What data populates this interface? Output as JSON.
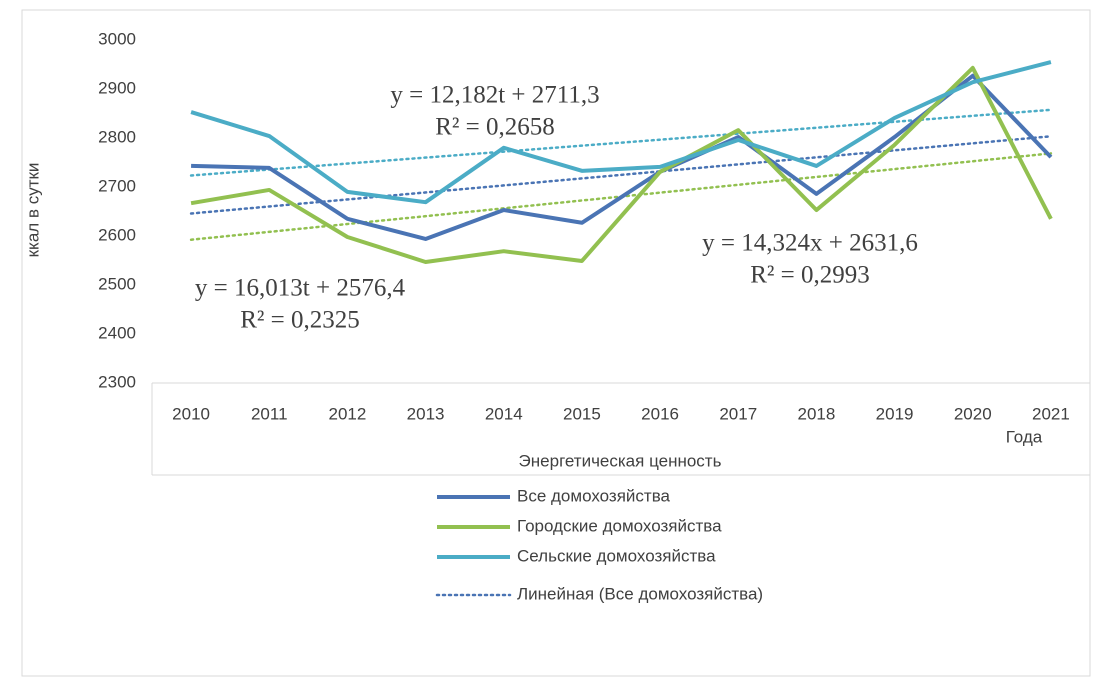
{
  "chart_data": {
    "type": "line",
    "ylabel": "ккал в сутки",
    "xlabel": "Энергетическая ценность",
    "xlabel_corner": "Года",
    "categories": [
      "2010",
      "2011",
      "2012",
      "2013",
      "2014",
      "2015",
      "2016",
      "2017",
      "2018",
      "2019",
      "2020",
      "2021"
    ],
    "series": [
      {
        "name": "Все домохозяйства",
        "color": "#4a74b4",
        "values": [
          2743,
          2739,
          2635,
          2594,
          2653,
          2627,
          2731,
          2802,
          2686,
          2802,
          2927,
          2761
        ]
      },
      {
        "name": "Городские домохозяйства",
        "color": "#92c050",
        "values": [
          2667,
          2694,
          2598,
          2547,
          2569,
          2549,
          2731,
          2816,
          2653,
          2786,
          2943,
          2635
        ]
      },
      {
        "name": "Сельские домохозяйства",
        "color": "#4bacc6",
        "values": [
          2853,
          2804,
          2690,
          2669,
          2780,
          2733,
          2741,
          2796,
          2743,
          2841,
          2914,
          2955
        ]
      }
    ],
    "trendlines": [
      {
        "series": 0,
        "name": "Линейная (Все домохозяйства)",
        "color": "#4a74b4",
        "slope": 14.324,
        "intercept": 2631.6,
        "equation": "y = 14,324x + 2631,6",
        "r2_label": "R² = 0,2993"
      },
      {
        "series": 1,
        "color": "#92c050",
        "slope": 16.013,
        "intercept": 2576.4,
        "equation": "y = 16,013t + 2576,4",
        "r2_label": "R² = 0,2325"
      },
      {
        "series": 2,
        "color": "#4bacc6",
        "slope": 12.182,
        "intercept": 2711.3,
        "equation": "y = 12,182t + 2711,3",
        "r2_label": "R² = 0,2658"
      }
    ],
    "ylim": [
      2300,
      3000
    ],
    "yticks": [
      2300,
      2400,
      2500,
      2600,
      2700,
      2800,
      2900,
      3000
    ],
    "grid": false
  }
}
